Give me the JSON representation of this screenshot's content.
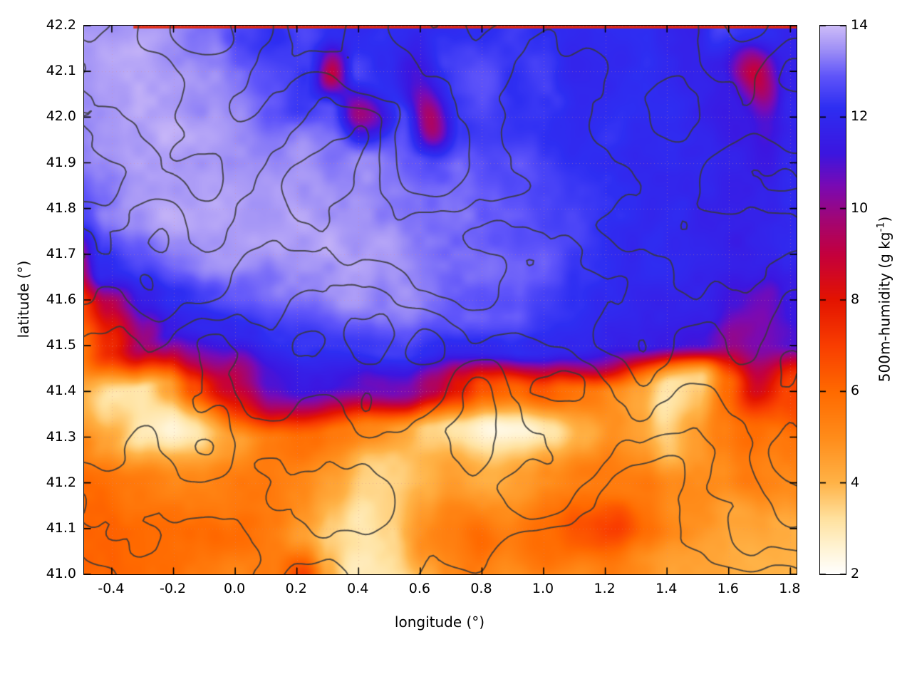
{
  "chart_data": {
    "type": "heatmap",
    "title": "",
    "xlabel": "longitude (°)",
    "ylabel": "latitude (°)",
    "x_range": [
      -0.49,
      1.82
    ],
    "y_range": [
      41.0,
      42.2
    ],
    "grid_on": true,
    "x_ticks": {
      "values": [
        -0.4,
        -0.2,
        0.0,
        0.2,
        0.4,
        0.6,
        0.8,
        1.0,
        1.2,
        1.4,
        1.6,
        1.8
      ],
      "labels": [
        "-0.4",
        "-0.2",
        "0.0",
        "0.2",
        "0.4",
        "0.6",
        "0.8",
        "1.0",
        "1.2",
        "1.4",
        "1.6",
        "1.8"
      ]
    },
    "y_ticks": {
      "values": [
        41.0,
        41.1,
        41.2,
        41.3,
        41.4,
        41.5,
        41.6,
        41.7,
        41.8,
        41.9,
        42.0,
        42.1,
        42.2
      ],
      "labels": [
        "41.0",
        "41.1",
        "41.2",
        "41.3",
        "41.4",
        "41.5",
        "41.6",
        "41.7",
        "41.8",
        "41.9",
        "42.0",
        "42.1",
        "42.2"
      ]
    },
    "colorbar": {
      "label_full": "500m-humidity (g kg-1)",
      "label_prefix": "500m-humidity (g kg",
      "label_sup": "-1",
      "label_suffix": ")",
      "range": [
        2,
        14
      ],
      "tick_values": [
        2,
        4,
        6,
        8,
        10,
        12,
        14
      ],
      "tick_labels": [
        "2",
        "4",
        "6",
        "8",
        "10",
        "12",
        "14"
      ]
    },
    "palette": [
      [
        2.0,
        "#ffffff"
      ],
      [
        2.6,
        "#fff3d2"
      ],
      [
        3.2,
        "#ffe2a0"
      ],
      [
        4.0,
        "#ffb347"
      ],
      [
        5.0,
        "#ff8c1a"
      ],
      [
        6.0,
        "#ff6a00"
      ],
      [
        7.0,
        "#f93e00"
      ],
      [
        8.0,
        "#e41400"
      ],
      [
        9.0,
        "#c4003e"
      ],
      [
        9.8,
        "#a00678"
      ],
      [
        10.5,
        "#7a0ab4"
      ],
      [
        11.2,
        "#3c16e0"
      ],
      [
        12.2,
        "#2e2ef2"
      ],
      [
        12.9,
        "#6055fa"
      ],
      [
        13.5,
        "#a192f6"
      ],
      [
        14.0,
        "#cdbcf8"
      ]
    ],
    "grid": {
      "units": "g/kg",
      "lon_start": -0.5,
      "lon_step": 0.1,
      "lat_start": 42.2,
      "lat_step": -0.1,
      "values": [
        [
          13.6,
          13.6,
          13.6,
          13.4,
          13.2,
          12.6,
          12.2,
          12.6,
          12.2,
          12.0,
          12.4,
          12.2,
          12.0,
          12.2,
          12.4,
          12.0,
          12.0,
          12.2,
          12.0,
          11.8,
          11.6,
          12.6,
          12.2,
          12.0
        ],
        [
          13.5,
          13.7,
          13.7,
          13.6,
          13.4,
          13.2,
          12.8,
          12.4,
          9.0,
          12.6,
          12.0,
          11.0,
          12.4,
          12.8,
          12.2,
          12.6,
          12.0,
          12.0,
          12.2,
          12.0,
          11.8,
          11.4,
          9.0,
          11.6
        ],
        [
          13.6,
          13.7,
          13.7,
          13.7,
          13.6,
          13.4,
          13.0,
          12.4,
          12.8,
          10.0,
          12.6,
          9.5,
          12.2,
          12.6,
          12.4,
          12.2,
          12.0,
          12.2,
          12.0,
          12.0,
          11.8,
          11.4,
          11.0,
          11.8
        ],
        [
          13.2,
          13.5,
          13.6,
          13.7,
          13.7,
          13.6,
          13.5,
          13.4,
          13.2,
          13.4,
          13.0,
          12.8,
          13.0,
          12.6,
          12.8,
          12.6,
          12.4,
          12.2,
          12.0,
          12.0,
          11.8,
          11.6,
          11.4,
          11.8
        ],
        [
          12.6,
          13.2,
          13.6,
          13.7,
          13.7,
          13.7,
          13.6,
          13.6,
          13.6,
          13.6,
          13.4,
          13.2,
          13.2,
          13.0,
          12.8,
          12.6,
          12.6,
          12.2,
          12.0,
          12.0,
          11.8,
          11.6,
          11.8,
          12.0
        ],
        [
          7.5,
          12.0,
          12.8,
          13.2,
          13.5,
          13.6,
          13.6,
          13.7,
          13.7,
          13.6,
          13.6,
          13.4,
          13.2,
          13.2,
          13.0,
          12.8,
          12.4,
          12.2,
          12.0,
          12.0,
          11.8,
          11.6,
          11.8,
          12.0
        ],
        [
          6.5,
          9.0,
          11.5,
          12.2,
          12.6,
          13.0,
          13.2,
          13.5,
          13.6,
          13.5,
          13.4,
          13.2,
          13.0,
          13.0,
          12.8,
          12.4,
          12.2,
          12.0,
          11.8,
          11.8,
          11.6,
          11.2,
          10.5,
          11.5
        ],
        [
          5.5,
          7.5,
          10.0,
          11.5,
          12.0,
          12.0,
          12.2,
          12.4,
          12.4,
          12.4,
          12.4,
          12.2,
          12.0,
          12.0,
          12.0,
          11.8,
          11.8,
          11.6,
          11.6,
          11.4,
          11.0,
          10.0,
          10.5,
          11.0
        ],
        [
          4.0,
          3.0,
          3.0,
          4.5,
          6.5,
          9.0,
          11.0,
          11.4,
          11.2,
          10.8,
          10.5,
          9.5,
          8.0,
          6.5,
          6.0,
          6.5,
          5.5,
          5.0,
          4.5,
          3.0,
          3.5,
          6.0,
          8.5,
          7.0
        ],
        [
          5.5,
          4.5,
          3.0,
          2.5,
          3.0,
          4.5,
          5.5,
          6.0,
          5.5,
          5.0,
          4.5,
          3.5,
          3.0,
          2.5,
          2.5,
          3.0,
          4.0,
          5.0,
          4.5,
          3.5,
          4.5,
          5.5,
          6.0,
          5.5
        ],
        [
          6.0,
          6.0,
          5.5,
          5.0,
          5.0,
          5.5,
          5.5,
          5.0,
          4.5,
          3.5,
          3.5,
          4.0,
          4.5,
          4.0,
          4.5,
          5.0,
          5.5,
          5.5,
          5.5,
          5.0,
          5.0,
          5.0,
          5.5,
          5.0
        ],
        [
          6.2,
          6.2,
          6.0,
          6.0,
          6.0,
          5.8,
          5.5,
          4.5,
          3.5,
          3.0,
          3.5,
          5.0,
          5.5,
          6.0,
          5.5,
          6.0,
          6.5,
          7.0,
          6.0,
          5.0,
          5.0,
          4.5,
          4.5,
          4.2
        ],
        [
          6.0,
          6.0,
          6.0,
          5.8,
          5.5,
          5.2,
          5.5,
          7.0,
          4.5,
          3.0,
          3.0,
          4.0,
          5.0,
          5.5,
          5.0,
          5.0,
          5.0,
          5.5,
          5.0,
          4.5,
          4.5,
          4.2,
          4.0,
          4.0
        ]
      ]
    },
    "contours": {
      "description": "terrain elevation contour lines",
      "color": "#383838",
      "levels": [
        0.28,
        0.38,
        0.48,
        0.58,
        0.68,
        0.78,
        0.88
      ]
    },
    "gridline_color": "#d98c8c",
    "edge_artifact_color": "#e62808"
  }
}
